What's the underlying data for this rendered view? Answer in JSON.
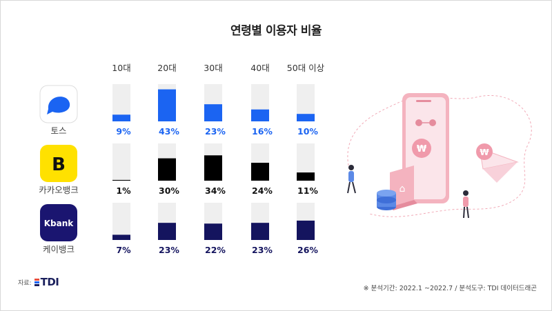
{
  "title": "연령별 이용자 비율",
  "source_label": "자료:",
  "source_logo_text": "TDI",
  "footnote": "※ 분석기간: 2022.1 ~2022.7  / 분석도구: TDI 데이터드래곤",
  "chart_data": {
    "type": "bar",
    "title": "연령별 이용자 비율",
    "categories": [
      "10대",
      "20대",
      "30대",
      "40대",
      "50대 이상"
    ],
    "ylim": [
      0,
      100
    ],
    "series": [
      {
        "name": "토스",
        "values": [
          9,
          43,
          23,
          16,
          10
        ],
        "labels": [
          "9%",
          "43%",
          "23%",
          "16%",
          "10%"
        ],
        "color": "#1b64f2",
        "label_color": "#1b64f2",
        "icon": "toss-logo-icon"
      },
      {
        "name": "카카오뱅크",
        "values": [
          1,
          30,
          34,
          24,
          11
        ],
        "labels": [
          "1%",
          "30%",
          "34%",
          "24%",
          "11%"
        ],
        "color": "#000000",
        "label_color": "#111111",
        "icon": "kakaobank-logo-icon"
      },
      {
        "name": "케이뱅크",
        "values": [
          7,
          23,
          22,
          23,
          26
        ],
        "labels": [
          "7%",
          "23%",
          "22%",
          "23%",
          "26%"
        ],
        "color": "#14145e",
        "label_color": "#14145e",
        "icon": "kbank-logo-icon"
      }
    ],
    "track_color": "#efefef"
  },
  "logos": {
    "kakaobank_letter": "B",
    "kbank_text": "Kbank"
  }
}
